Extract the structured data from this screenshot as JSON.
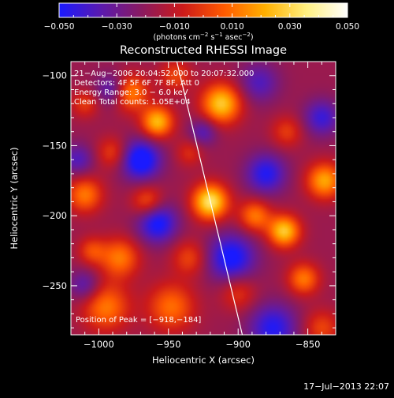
{
  "chart_data": {
    "type": "heatmap",
    "title": "Reconstructed RHESSI Image",
    "xlabel": "Heliocentric X (arcsec)",
    "ylabel": "Heliocentric Y (arcsec)",
    "xlim": [
      -1020,
      -830
    ],
    "ylim": [
      -285,
      -90
    ],
    "x_ticks": [
      -1000,
      -950,
      -900,
      -850
    ],
    "x_tick_labels": [
      "−1000",
      "−950",
      "−900",
      "−850"
    ],
    "y_ticks": [
      -100,
      -150,
      -200,
      -250
    ],
    "y_tick_labels": [
      "−100",
      "−150",
      "−200",
      "−250"
    ],
    "colorbar": {
      "range": [
        -0.05,
        0.05
      ],
      "ticks": [
        -0.05,
        -0.03,
        -0.01,
        0.01,
        0.03,
        0.05
      ],
      "tick_labels": [
        "−0.050",
        "−0.030",
        "−0.010",
        "0.010",
        "0.030",
        "0.050"
      ],
      "unit_prefix": "(photons cm",
      "unit_sup1": "−2",
      "unit_mid": " s",
      "unit_sup2": "−1",
      "unit_mid2": " asec",
      "unit_sup3": "−2",
      "unit_suffix": ")",
      "colors": [
        "#1a1aff",
        "#5a1ab0",
        "#8a1a60",
        "#cc1a1a",
        "#ff5a00",
        "#ffb000",
        "#fff080",
        "#ffffff"
      ]
    },
    "annotations": [
      "21−Aug−2006 20:04:52.000 to 20:07:32.000",
      "Detectors: 4F 5F 6F 7F 8F, Att 0",
      "Energy Range: 3.0 − 6.0 keV",
      "Clean     Total counts: 1.05E+04"
    ],
    "peak_label": "Position of Peak = [−918,−184]",
    "peak": [
      -918,
      -184
    ],
    "limb_line": [
      [
        -944,
        -90
      ],
      [
        -897,
        -285
      ]
    ],
    "sources": [
      {
        "x": -920,
        "y": -190,
        "v": 0.052,
        "s": 9
      },
      {
        "x": -912,
        "y": -120,
        "v": 0.045,
        "s": 10
      },
      {
        "x": -958,
        "y": -133,
        "v": 0.042,
        "s": 8
      },
      {
        "x": -978,
        "y": -112,
        "v": 0.035,
        "s": 9
      },
      {
        "x": -867,
        "y": -211,
        "v": 0.045,
        "s": 8
      },
      {
        "x": -838,
        "y": -175,
        "v": 0.038,
        "s": 9
      },
      {
        "x": -853,
        "y": -245,
        "v": 0.03,
        "s": 8
      },
      {
        "x": -888,
        "y": -200,
        "v": 0.03,
        "s": 8
      },
      {
        "x": -1010,
        "y": -185,
        "v": 0.03,
        "s": 9
      },
      {
        "x": -985,
        "y": -230,
        "v": 0.03,
        "s": 10
      },
      {
        "x": -965,
        "y": -190,
        "v": 0.025,
        "s": 8
      },
      {
        "x": -995,
        "y": -265,
        "v": 0.03,
        "s": 12
      },
      {
        "x": -948,
        "y": -265,
        "v": 0.028,
        "s": 12
      },
      {
        "x": -990,
        "y": -155,
        "v": 0.02,
        "s": 8
      },
      {
        "x": -1010,
        "y": -120,
        "v": 0.018,
        "s": 7
      },
      {
        "x": -935,
        "y": -230,
        "v": 0.02,
        "s": 9
      },
      {
        "x": -865,
        "y": -140,
        "v": 0.018,
        "s": 8
      },
      {
        "x": -900,
        "y": -255,
        "v": 0.018,
        "s": 9
      },
      {
        "x": -935,
        "y": -155,
        "v": 0.015,
        "s": 7
      },
      {
        "x": -945,
        "y": -100,
        "v": 0.02,
        "s": 8
      },
      {
        "x": -840,
        "y": -280,
        "v": 0.02,
        "s": 9
      },
      {
        "x": -1005,
        "y": -225,
        "v": 0.02,
        "s": 7
      },
      {
        "x": -970,
        "y": -160,
        "v": -0.04,
        "s": 10
      },
      {
        "x": -958,
        "y": -205,
        "v": -0.035,
        "s": 10
      },
      {
        "x": -880,
        "y": -170,
        "v": -0.03,
        "s": 10
      },
      {
        "x": -905,
        "y": -230,
        "v": -0.035,
        "s": 12
      },
      {
        "x": -875,
        "y": -280,
        "v": -0.03,
        "s": 12
      },
      {
        "x": -990,
        "y": -110,
        "v": -0.025,
        "s": 8
      },
      {
        "x": -840,
        "y": -130,
        "v": -0.025,
        "s": 9
      },
      {
        "x": -1015,
        "y": -160,
        "v": -0.02,
        "s": 8
      },
      {
        "x": -885,
        "y": -105,
        "v": -0.02,
        "s": 10
      },
      {
        "x": -1010,
        "y": -250,
        "v": -0.02,
        "s": 8
      },
      {
        "x": -925,
        "y": -140,
        "v": -0.02,
        "s": 7
      }
    ]
  },
  "timestamp": "17−Jul−2013 22:07"
}
